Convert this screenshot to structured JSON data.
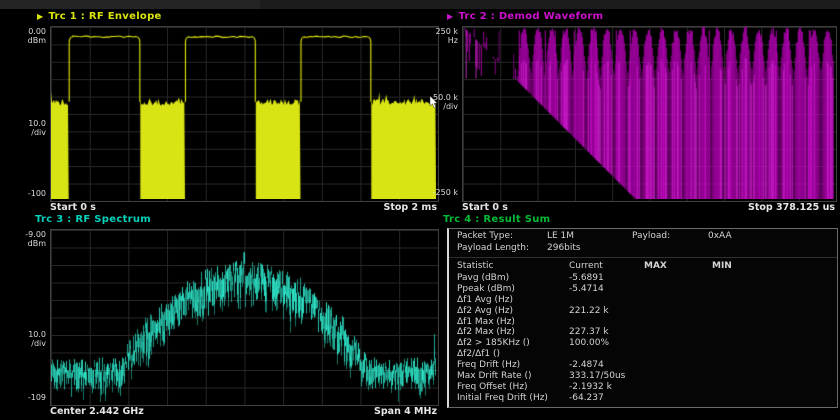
{
  "window": {
    "background": "#000000",
    "top_strip_note": "partially cut-off toolbar strip"
  },
  "panels": {
    "trc1": {
      "arrow": "▶",
      "title": "Trc 1 :  RF Envelope",
      "title_color": "#d9e40a",
      "trace_color": "#e6ef0e",
      "fill_color": "#d9e414",
      "y_top_value": "0.00",
      "y_top_unit": "dBm",
      "y_mid_value": "10.0",
      "y_mid_unit": "/div",
      "y_bottom_value": "-100",
      "x_left": "Start 0 s",
      "x_right": "Stop 2 ms"
    },
    "trc2": {
      "arrow": "▶",
      "title": "Trc 2 :  Demod Waveform",
      "title_color": "#cc10cc",
      "trace_color": "#bb00bb",
      "y_top_value": "250 k",
      "y_top_unit": "Hz",
      "y_mid_value": "50.0 k",
      "y_mid_unit": "/div",
      "y_bottom_value": "-250 k",
      "x_left": "Start 0 s",
      "x_right": "Stop 378.125 us"
    },
    "trc3": {
      "title": "Trc 3 :  RF Spectrum",
      "title_color": "#00d2bc",
      "trace_color": "#2de8cb",
      "y_top_value": "-9.00",
      "y_top_unit": "dBm",
      "y_mid_value": "10.0",
      "y_mid_unit": "/div",
      "y_bottom_value": "-109",
      "x_left": "Center 2.442 GHz",
      "x_right": "Span 4 MHz"
    },
    "trc4": {
      "title": "Trc 4 :  Result Sum",
      "title_color": "#00bb33",
      "info": {
        "packet_type_label": "Packet Type:",
        "packet_type": "LE 1M",
        "payload_label": "Payload:",
        "payload": "0xAA",
        "payload_length_label": "Payload Length:",
        "payload_length": "296bits"
      },
      "columns": [
        "Statistic",
        "Current",
        "MAX",
        "MIN"
      ],
      "rows": [
        [
          "Pavg (dBm)",
          "-5.6891",
          "",
          ""
        ],
        [
          "Ppeak (dBm)",
          "-5.4714",
          "",
          ""
        ],
        [
          "Δf1 Avg (Hz)",
          "",
          "",
          ""
        ],
        [
          "Δf2 Avg (Hz)",
          "221.22 k",
          "",
          ""
        ],
        [
          "Δf1 Max (Hz)",
          "",
          "",
          ""
        ],
        [
          "Δf2 Max (Hz)",
          "227.37 k",
          "",
          ""
        ],
        [
          "Δf2 > 185KHz ()",
          "100.00%",
          "",
          ""
        ],
        [
          "Δf2/Δf1 ()",
          "",
          "",
          ""
        ],
        [
          "Freq Drift (Hz)",
          "-2.4874",
          "",
          ""
        ],
        [
          "Max Drift Rate ()",
          "333.17/50us",
          "",
          ""
        ],
        [
          "Freq Offset (Hz)",
          "-2.1932 k",
          "",
          ""
        ],
        [
          "Initial Freq Drift (Hz)",
          "-64.237",
          "",
          ""
        ]
      ]
    }
  },
  "chart_data": [
    {
      "type": "line",
      "name": "RF Envelope",
      "x_range": [
        "0 s",
        "2 ms"
      ],
      "y_range_dBm": [
        -100,
        0
      ],
      "y_scale": "10.0 dB/div",
      "description": "Burst envelope: 3.5 bursts at ~-5.5 dBm pulse top, noise floor ~-44 dBm between bursts",
      "burst_fractions": [
        [
          0.046,
          0.232
        ],
        [
          0.348,
          0.532
        ],
        [
          0.648,
          0.832
        ]
      ],
      "noise_top_dBm": -44,
      "pulse_top_dBm": -5.5
    },
    {
      "type": "line",
      "name": "Demod Waveform",
      "x_range": [
        "0 s",
        "378.125 us"
      ],
      "y_range_Hz": [
        -250000,
        250000
      ],
      "y_scale": "50.0 kHz/div",
      "description": "FM demod waveform: irregular preamble/access-address section then dense periodic 0xAA payload deviation ~±225 kHz"
    },
    {
      "type": "line",
      "name": "RF Spectrum",
      "center": "2.442 GHz",
      "span": "4 MHz",
      "y_range_dBm": [
        -109,
        -9
      ],
      "y_scale": "10.0 dB/div",
      "description": "GFSK spectrum hump ~-33 dBm wide lobe, center spike ~-12 dBm at 2.442 GHz, side spikes ~-36 dBm, noise floor ~-87 dBm"
    },
    {
      "type": "table",
      "name": "Result Sum",
      "columns": [
        "Statistic",
        "Current",
        "MAX",
        "MIN"
      ],
      "values": {
        "Pavg (dBm)": "-5.6891",
        "Ppeak (dBm)": "-5.4714",
        "Δf2 Avg (Hz)": "221.22 k",
        "Δf2 Max (Hz)": "227.37 k",
        "Δf2 > 185KHz ()": "100.00%",
        "Freq Drift (Hz)": "-2.4874",
        "Max Drift Rate ()": "333.17/50us",
        "Freq Offset (Hz)": "-2.1932 k",
        "Initial Freq Drift (Hz)": "-64.237"
      }
    }
  ]
}
